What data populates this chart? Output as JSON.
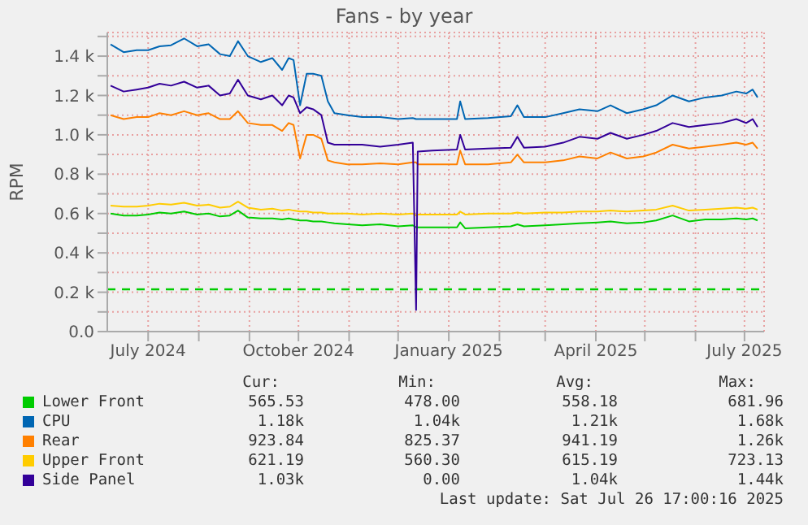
{
  "chart_data": {
    "type": "line",
    "title": "Fans - by year",
    "ylabel": "RPM",
    "legend": "bottom",
    "grid": true,
    "marker": "none",
    "xlim": [
      "2024-06-06",
      "2025-07-13"
    ],
    "xticks": [
      {
        "value": "2024-07-01",
        "label": "July 2024"
      },
      {
        "value": "2024-08-01",
        "label": null
      },
      {
        "value": "2024-09-01",
        "label": null
      },
      {
        "value": "2024-10-01",
        "label": "October 2024"
      },
      {
        "value": "2024-11-01",
        "label": null
      },
      {
        "value": "2024-12-01",
        "label": null
      },
      {
        "value": "2025-01-01",
        "label": "January 2025"
      },
      {
        "value": "2025-02-01",
        "label": null
      },
      {
        "value": "2025-03-01",
        "label": null
      },
      {
        "value": "2025-04-01",
        "label": "April 2025"
      },
      {
        "value": "2025-05-01",
        "label": null
      },
      {
        "value": "2025-06-01",
        "label": null
      },
      {
        "value": "2025-07-01",
        "label": "July 2025"
      }
    ],
    "ylim": [
      0,
      1520
    ],
    "yticks": [
      {
        "value": 0,
        "label": "0.0"
      },
      {
        "value": 100,
        "label": null
      },
      {
        "value": 200,
        "label": "0.2 k"
      },
      {
        "value": 300,
        "label": null
      },
      {
        "value": 400,
        "label": "0.4 k"
      },
      {
        "value": 500,
        "label": null
      },
      {
        "value": 600,
        "label": "0.6 k"
      },
      {
        "value": 700,
        "label": null
      },
      {
        "value": 800,
        "label": "0.8 k"
      },
      {
        "value": 900,
        "label": null
      },
      {
        "value": 1000,
        "label": "1.0 k"
      },
      {
        "value": 1100,
        "label": null
      },
      {
        "value": 1200,
        "label": "1.2 k"
      },
      {
        "value": 1300,
        "label": null
      },
      {
        "value": 1400,
        "label": "1.4 k"
      },
      {
        "value": 1500,
        "label": null
      }
    ],
    "x": [
      "2024-06-08",
      "2024-06-16",
      "2024-06-24",
      "2024-07-01",
      "2024-07-08",
      "2024-07-15",
      "2024-07-23",
      "2024-07-31",
      "2024-08-07",
      "2024-08-14",
      "2024-08-20",
      "2024-08-25",
      "2024-08-31",
      "2024-09-08",
      "2024-09-15",
      "2024-09-21",
      "2024-09-25",
      "2024-09-28",
      "2024-10-02",
      "2024-10-06",
      "2024-10-10",
      "2024-10-15",
      "2024-10-19",
      "2024-10-23",
      "2024-10-31",
      "2024-11-09",
      "2024-11-20",
      "2024-12-01",
      "2024-12-10",
      "2024-12-12",
      "2024-12-13",
      "2024-12-22",
      "2025-01-06",
      "2025-01-08",
      "2025-01-11",
      "2025-01-25",
      "2025-02-08",
      "2025-02-12",
      "2025-02-16",
      "2025-03-01",
      "2025-03-12",
      "2025-03-22",
      "2025-04-02",
      "2025-04-10",
      "2025-04-20",
      "2025-04-30",
      "2025-05-08",
      "2025-05-18",
      "2025-05-28",
      "2025-06-07",
      "2025-06-17",
      "2025-06-26",
      "2025-07-02",
      "2025-07-06",
      "2025-07-09"
    ],
    "series": [
      {
        "name": "Lower Front",
        "color": "#00cc00",
        "values": [
          600,
          590,
          590,
          595,
          605,
          600,
          610,
          595,
          600,
          585,
          590,
          615,
          580,
          575,
          575,
          570,
          575,
          570,
          565,
          565,
          560,
          560,
          555,
          550,
          545,
          540,
          545,
          535,
          540,
          530,
          530,
          530,
          530,
          555,
          525,
          530,
          535,
          545,
          535,
          540,
          545,
          550,
          555,
          560,
          550,
          555,
          565,
          590,
          560,
          570,
          570,
          575,
          570,
          575,
          565
        ]
      },
      {
        "name": "CPU",
        "color": "#0066b3",
        "values": [
          1460,
          1420,
          1430,
          1430,
          1450,
          1455,
          1490,
          1450,
          1460,
          1410,
          1400,
          1476,
          1400,
          1370,
          1390,
          1330,
          1390,
          1380,
          1150,
          1310,
          1310,
          1300,
          1170,
          1110,
          1100,
          1090,
          1090,
          1080,
          1085,
          1080,
          1080,
          1080,
          1080,
          1170,
          1080,
          1085,
          1095,
          1150,
          1090,
          1090,
          1110,
          1130,
          1120,
          1150,
          1110,
          1130,
          1150,
          1200,
          1170,
          1190,
          1200,
          1220,
          1210,
          1230,
          1190
        ]
      },
      {
        "name": "Rear",
        "color": "#ff8000",
        "values": [
          1100,
          1080,
          1090,
          1090,
          1110,
          1100,
          1120,
          1100,
          1110,
          1080,
          1080,
          1120,
          1060,
          1050,
          1050,
          1020,
          1060,
          1050,
          880,
          1000,
          1000,
          980,
          870,
          860,
          850,
          850,
          855,
          850,
          860,
          860,
          850,
          850,
          850,
          920,
          850,
          850,
          860,
          900,
          860,
          860,
          870,
          890,
          880,
          910,
          880,
          890,
          910,
          950,
          930,
          940,
          950,
          960,
          950,
          960,
          930
        ]
      },
      {
        "name": "Upper Front",
        "color": "#ffcc00",
        "values": [
          640,
          635,
          635,
          640,
          650,
          645,
          655,
          640,
          645,
          630,
          635,
          660,
          630,
          620,
          625,
          615,
          620,
          615,
          610,
          610,
          605,
          605,
          600,
          600,
          600,
          595,
          600,
          595,
          600,
          590,
          595,
          595,
          595,
          610,
          595,
          600,
          600,
          605,
          600,
          605,
          605,
          610,
          610,
          615,
          610,
          615,
          620,
          640,
          615,
          620,
          625,
          630,
          625,
          630,
          620
        ]
      },
      {
        "name": "Side Panel",
        "color": "#330099",
        "values": [
          1250,
          1220,
          1230,
          1240,
          1260,
          1250,
          1270,
          1240,
          1250,
          1200,
          1210,
          1280,
          1200,
          1180,
          1200,
          1150,
          1200,
          1190,
          1110,
          1140,
          1130,
          1100,
          960,
          950,
          950,
          950,
          940,
          950,
          960,
          110,
          915,
          920,
          925,
          1000,
          925,
          930,
          935,
          990,
          935,
          940,
          960,
          990,
          980,
          1010,
          980,
          1000,
          1020,
          1060,
          1040,
          1050,
          1060,
          1080,
          1060,
          1080,
          1040
        ]
      }
    ],
    "ref_lines": [
      {
        "axis": "y",
        "value": 215,
        "color": "#00cc00",
        "line_style": "dashed"
      }
    ],
    "annotations": [
      "Cur:",
      "Min:",
      "Avg:",
      "Max:",
      "565.53",
      "478.00",
      "558.18",
      "681.96",
      "1.18k",
      "1.04k",
      "1.21k",
      "1.68k",
      "923.84",
      "825.37",
      "941.19",
      "1.26k",
      "621.19",
      "560.30",
      "615.19",
      "723.13",
      "1.03k",
      "0.00",
      "1.04k",
      "1.44k",
      "Last update: Sat Jul 26 17:00:16 2025"
    ]
  }
}
